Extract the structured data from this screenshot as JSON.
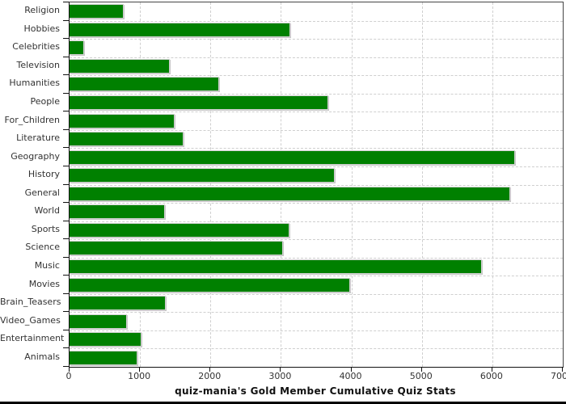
{
  "chart_data": {
    "type": "bar",
    "orientation": "horizontal",
    "title": "quiz-mania's Gold Member Cumulative Quiz Stats",
    "categories": [
      "Religion",
      "Hobbies",
      "Celebrities",
      "Television",
      "Humanities",
      "People",
      "For_Children",
      "Literature",
      "Geography",
      "History",
      "General",
      "World",
      "Sports",
      "Science",
      "Music",
      "Movies",
      "Brain_Teasers",
      "Video_Games",
      "Entertainment",
      "Animals"
    ],
    "values": [
      760,
      3120,
      200,
      1415,
      2110,
      3665,
      1480,
      1610,
      6315,
      3750,
      6240,
      1340,
      3110,
      3020,
      5845,
      3970,
      1355,
      805,
      1010,
      950
    ],
    "xlabel": "",
    "ylabel": "",
    "xlim": [
      0,
      7000
    ],
    "x_tick_step": 1000,
    "x_tick_labels": [
      "0",
      "1000",
      "2000",
      "3000",
      "4000",
      "5000",
      "6000",
      "7000"
    ],
    "grid": true,
    "legend": "none",
    "colors": {
      "bar_fill": "#008000",
      "bar_outline": "#d2d2d2",
      "gridline": "#cfcfcf",
      "axis": "#111111",
      "frame": "#444444",
      "tick_label": "#333333",
      "title": "#111111",
      "background": "#ffffff",
      "bottom_edge": "#000000"
    }
  }
}
